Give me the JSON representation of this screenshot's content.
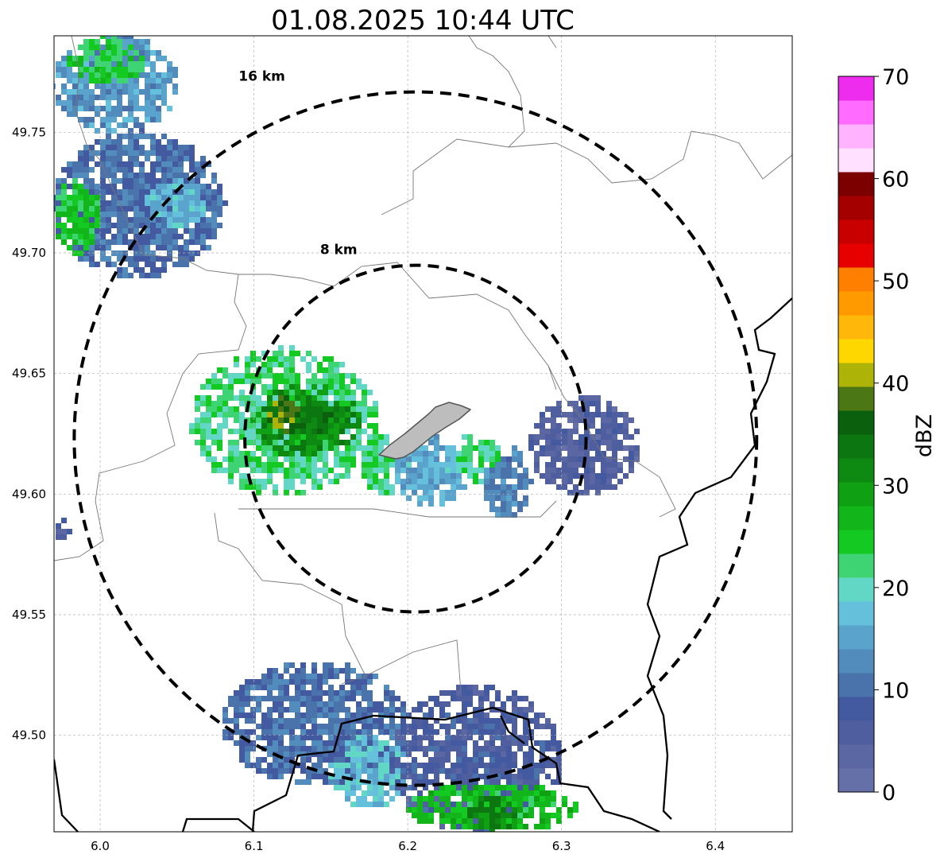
{
  "title": "01.08.2025 10:44 UTC",
  "map": {
    "lon_range": [
      5.97,
      6.45
    ],
    "lat_range": [
      49.46,
      49.79
    ],
    "x_ticks": [
      {
        "value": 6.0,
        "label": "6.0"
      },
      {
        "value": 6.1,
        "label": "6.1"
      },
      {
        "value": 6.2,
        "label": "6.2"
      },
      {
        "value": 6.3,
        "label": "6.3"
      },
      {
        "value": 6.4,
        "label": "6.4"
      }
    ],
    "y_ticks": [
      {
        "value": 49.5,
        "label": "49.50"
      },
      {
        "value": 49.55,
        "label": "49.55"
      },
      {
        "value": 49.6,
        "label": "49.60"
      },
      {
        "value": 49.65,
        "label": "49.65"
      },
      {
        "value": 49.7,
        "label": "49.70"
      },
      {
        "value": 49.75,
        "label": "49.75"
      }
    ],
    "grid": true,
    "range_rings": [
      {
        "label": "8 km",
        "radius_km": 8
      },
      {
        "label": "16 km",
        "radius_km": 16
      }
    ],
    "rings_center": [
      6.205,
      49.623
    ],
    "site_area": "grey-polygon",
    "echo_cells": [
      {
        "lon": [
          5.97,
          6.05
        ],
        "lat": [
          49.75,
          49.79
        ],
        "dbz": 14
      },
      {
        "lon": [
          5.97,
          6.08
        ],
        "lat": [
          49.69,
          49.75
        ],
        "dbz": 10
      },
      {
        "lon": [
          5.97,
          6.0
        ],
        "lat": [
          49.7,
          49.73
        ],
        "dbz": 25
      },
      {
        "lon": [
          5.98,
          6.03
        ],
        "lat": [
          49.77,
          49.79
        ],
        "dbz": 24
      },
      {
        "lon": [
          6.03,
          6.07
        ],
        "lat": [
          49.71,
          49.73
        ],
        "dbz": 17
      },
      {
        "lon": [
          5.97,
          5.98
        ],
        "lat": [
          49.58,
          49.59
        ],
        "dbz": 6
      },
      {
        "lon": [
          6.06,
          6.18
        ],
        "lat": [
          49.6,
          49.66
        ],
        "dbz": 22
      },
      {
        "lon": [
          6.1,
          6.17
        ],
        "lat": [
          49.615,
          49.645
        ],
        "dbz": 31
      },
      {
        "lon": [
          6.11,
          6.13
        ],
        "lat": [
          49.625,
          49.64
        ],
        "dbz": 38
      },
      {
        "lon": [
          6.13,
          6.15
        ],
        "lat": [
          49.625,
          49.64
        ],
        "dbz": 34
      },
      {
        "lon": [
          6.17,
          6.2
        ],
        "lat": [
          49.6,
          49.625
        ],
        "dbz": 22
      },
      {
        "lon": [
          6.19,
          6.24
        ],
        "lat": [
          49.595,
          49.625
        ],
        "dbz": 16
      },
      {
        "lon": [
          6.23,
          6.26
        ],
        "lat": [
          49.605,
          49.625
        ],
        "dbz": 22
      },
      {
        "lon": [
          6.25,
          6.28
        ],
        "lat": [
          49.59,
          49.62
        ],
        "dbz": 12
      },
      {
        "lon": [
          6.28,
          6.35
        ],
        "lat": [
          49.6,
          49.64
        ],
        "dbz": 5
      },
      {
        "lon": [
          6.08,
          6.2
        ],
        "lat": [
          49.48,
          49.53
        ],
        "dbz": 10
      },
      {
        "lon": [
          6.15,
          6.2
        ],
        "lat": [
          49.47,
          49.5
        ],
        "dbz": 18
      },
      {
        "lon": [
          6.19,
          6.3
        ],
        "lat": [
          49.46,
          49.52
        ],
        "dbz": 7
      },
      {
        "lon": [
          6.2,
          6.31
        ],
        "lat": [
          49.46,
          49.48
        ],
        "dbz": 26
      },
      {
        "lon": [
          6.24,
          6.27
        ],
        "lat": [
          49.46,
          49.475
        ],
        "dbz": 32
      }
    ]
  },
  "colorbar": {
    "label": "dBZ",
    "min": 0,
    "max": 70,
    "tick_labels": [
      "0",
      "10",
      "20",
      "30",
      "40",
      "50",
      "60",
      "70"
    ],
    "colors": [
      "#6670a8",
      "#5a67a3",
      "#4e5e9e",
      "#435aa0",
      "#4a73ac",
      "#528cbd",
      "#5aa3cc",
      "#65c0dc",
      "#63d7c5",
      "#3ed474",
      "#14c922",
      "#12b61a",
      "#10a014",
      "#0e8a12",
      "#0c7610",
      "#0b600d",
      "#4b7714",
      "#aeb407",
      "#ffd700",
      "#ffb70a",
      "#ff9a00",
      "#ff7f00",
      "#e60000",
      "#c80000",
      "#a50000",
      "#7d0000",
      "#ffe0ff",
      "#ffb3ff",
      "#ff6bff",
      "#ee2cee"
    ]
  }
}
